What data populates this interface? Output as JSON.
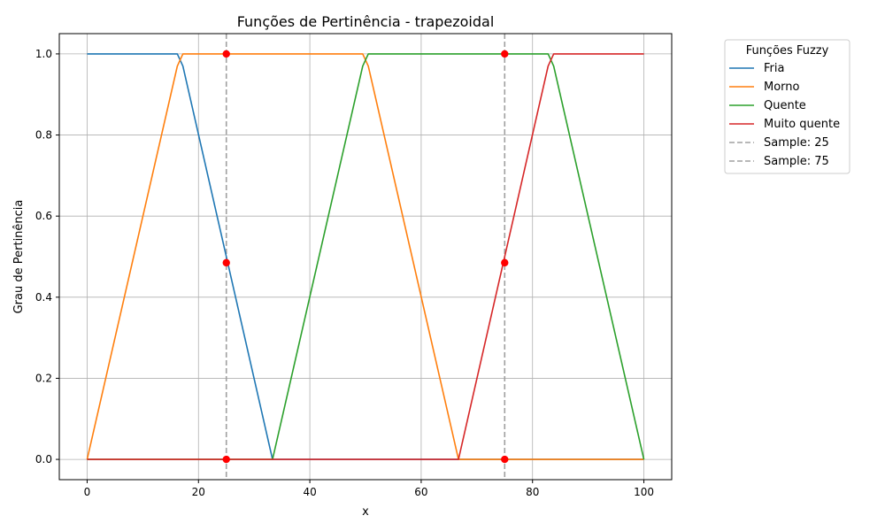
{
  "chart_data": {
    "type": "line",
    "title": "Funções de Pertinência - trapezoidal",
    "xlabel": "x",
    "ylabel": "Grau de Pertinência",
    "xlim": [
      -5,
      105
    ],
    "ylim": [
      -0.05,
      1.05
    ],
    "xticks": [
      0,
      20,
      40,
      60,
      80,
      100
    ],
    "yticks": [
      0.0,
      0.2,
      0.4,
      0.6,
      0.8,
      1.0
    ],
    "xtick_labels": [
      "0",
      "20",
      "40",
      "60",
      "80",
      "100"
    ],
    "ytick_labels": [
      "0.0",
      "0.2",
      "0.4",
      "0.6",
      "0.8",
      "1.0"
    ],
    "grid": true,
    "legend": {
      "title": "Funções Fuzzy",
      "placement": "outside-top-right"
    },
    "series": [
      {
        "name": "Fria",
        "color": "#1f77b4",
        "x": [
          0,
          16.2,
          17.2,
          33.3,
          100
        ],
        "y": [
          1.0,
          1.0,
          0.97,
          0.0,
          0.0
        ]
      },
      {
        "name": "Morno",
        "color": "#ff7f0e",
        "x": [
          0,
          16.2,
          17.2,
          49.5,
          50.5,
          66.7,
          100
        ],
        "y": [
          0.0,
          0.97,
          1.0,
          1.0,
          0.97,
          0.0,
          0.0
        ]
      },
      {
        "name": "Quente",
        "color": "#2ca02c",
        "x": [
          0,
          33.3,
          49.5,
          50.5,
          82.8,
          83.8,
          100
        ],
        "y": [
          0.0,
          0.0,
          0.97,
          1.0,
          1.0,
          0.97,
          0.0
        ]
      },
      {
        "name": "Muito quente",
        "color": "#d62728",
        "x": [
          0,
          66.7,
          82.8,
          83.8,
          100
        ],
        "y": [
          0.0,
          0.0,
          0.97,
          1.0,
          1.0
        ]
      }
    ],
    "vlines": [
      {
        "name": "Sample: 25",
        "x": 25,
        "color": "#a0a0a0"
      },
      {
        "name": "Sample: 75",
        "x": 75,
        "color": "#a0a0a0"
      }
    ],
    "markers": {
      "color": "#ff0000",
      "points": [
        {
          "x": 25,
          "y": 1.0
        },
        {
          "x": 25,
          "y": 0.485
        },
        {
          "x": 25,
          "y": 0.0
        },
        {
          "x": 75,
          "y": 1.0
        },
        {
          "x": 75,
          "y": 0.485
        },
        {
          "x": 75,
          "y": 0.0
        }
      ]
    }
  }
}
